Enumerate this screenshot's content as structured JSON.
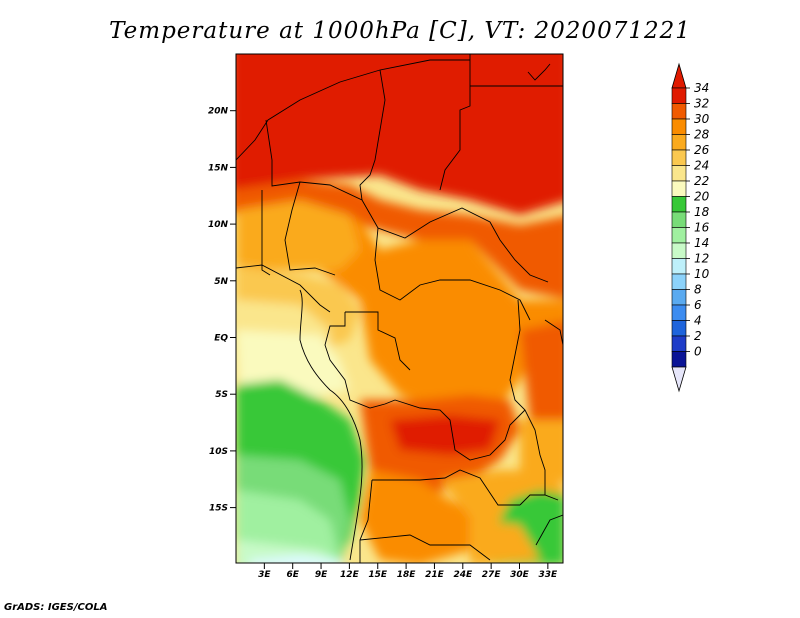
{
  "title": "Temperature at 1000hPa [C], VT: 2020071221",
  "credit": "GrADS: IGES/COLA",
  "axes": {
    "x_ticks": [
      "3E",
      "6E",
      "9E",
      "12E",
      "15E",
      "18E",
      "21E",
      "24E",
      "27E",
      "30E",
      "33E"
    ],
    "y_ticks": [
      "20N",
      "15N",
      "10N",
      "5N",
      "EQ",
      "5S",
      "10S",
      "15S"
    ]
  },
  "colorbar": {
    "labels": [
      "34",
      "32",
      "30",
      "28",
      "26",
      "24",
      "22",
      "20",
      "18",
      "16",
      "14",
      "12",
      "10",
      "8",
      "6",
      "4",
      "2",
      "0"
    ],
    "colors": [
      "#e01a00",
      "#f05a00",
      "#fa8c00",
      "#faaa1e",
      "#fac850",
      "#fae68c",
      "#fafabe",
      "#37c837",
      "#78dc78",
      "#a0f0a0",
      "#c8fac8",
      "#bef0fa",
      "#8cd2fa",
      "#5aaaf0",
      "#3c8cf0",
      "#1e64dc",
      "#1e3cc8",
      "#0a1496",
      "#000a5a"
    ],
    "top_arrow_color": "#e01a00",
    "bottom_arrow_color": "#e6e6fa"
  },
  "legend_colors": {
    "very_hot": "#e01a00",
    "hot": "#f05a00",
    "warm": "#fa8c00",
    "mild_warm": "#faaa1e",
    "mild": "#fac850",
    "pale": "#fae68c",
    "cream": "#fafabe",
    "green": "#37c837",
    "light_green": "#78dc78",
    "pale_green": "#a0f0a0",
    "mint": "#c8fac8",
    "ice": "#dcfaff"
  }
}
